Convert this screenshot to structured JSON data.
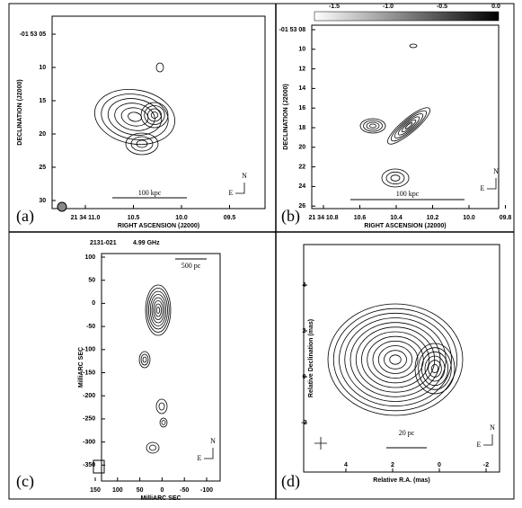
{
  "panels": [
    {
      "label": "(a)",
      "y_axis_label": "DECLINATION (J2000)",
      "x_axis_label": "RIGHT ASCENSION (J2000)",
      "y_ticks": [
        "-01 53 05",
        "10",
        "15",
        "20",
        "25",
        "30"
      ],
      "x_ticks": [
        "21 34 11.0",
        "10.5",
        "10.0",
        "09.5"
      ],
      "scale_bar": "100 kpc",
      "compass": [
        "N",
        "E"
      ]
    },
    {
      "label": "(b)",
      "y_axis_label": "DECLINATION (J2000)",
      "x_axis_label": "RIGHT ASCENSION (J2000)",
      "colorbar_ticks": [
        "-1.5",
        "-1.0",
        "-0.5",
        "0.0"
      ],
      "y_ticks": [
        "-01 53 08",
        "10",
        "12",
        "14",
        "16",
        "18",
        "20",
        "22",
        "24",
        "26"
      ],
      "x_ticks": [
        "21 34 10.8",
        "10.6",
        "10.4",
        "10.2",
        "10.0",
        "09.8"
      ],
      "scale_bar": "100 kpc",
      "compass": [
        "N",
        "E"
      ]
    },
    {
      "label": "(c)",
      "title": "2131-021",
      "frequency": "4.99 GHz",
      "y_axis_label": "MilliARC SEC",
      "x_axis_label": "MilliARC SEC",
      "y_ticks": [
        "100",
        "50",
        "0",
        "-50",
        "-100",
        "-150",
        "-200",
        "-250",
        "-300",
        "-350"
      ],
      "x_ticks": [
        "150",
        "100",
        "50",
        "0",
        "-50",
        "-100"
      ],
      "scale_bar": "500 pc",
      "compass": [
        "N",
        "E"
      ]
    },
    {
      "label": "(d)",
      "y_axis_label": "Relative Declination (mas)",
      "x_axis_label": "Relative R.A. (mas)",
      "y_ticks": [
        "4",
        "2",
        "0",
        "-2"
      ],
      "x_ticks": [
        "4",
        "2",
        "0",
        "-2"
      ],
      "scale_bar": "20 pc",
      "compass": [
        "N",
        "E"
      ]
    }
  ]
}
